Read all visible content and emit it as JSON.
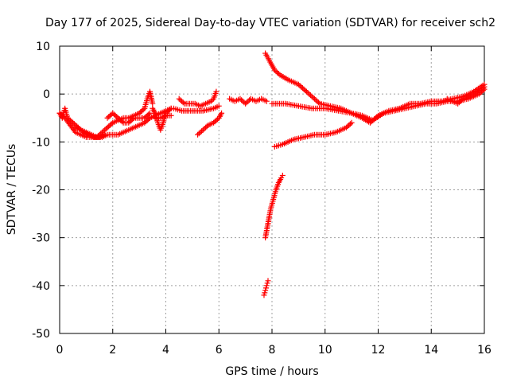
{
  "chart_data": {
    "type": "scatter",
    "title": "Day 177 of 2025, Sidereal Day-to-day VTEC variation (SDTVAR) for receiver sch2",
    "xlabel": "GPS time / hours",
    "ylabel": "SDTVAR / TECUs",
    "xlim": [
      0,
      16
    ],
    "ylim": [
      -50,
      10
    ],
    "x_ticks": [
      "0",
      "2",
      "4",
      "6",
      "8",
      "10",
      "12",
      "14",
      "16"
    ],
    "y_ticks": [
      "10",
      "0",
      "-10",
      "-20",
      "-30",
      "-40",
      "-50"
    ],
    "grid": true,
    "marker": "+",
    "color": "#ff0000",
    "series": [
      {
        "x": [
          0.0,
          0.1,
          0.2,
          0.3,
          0.5,
          0.7,
          0.9,
          1.1,
          1.3,
          1.5,
          1.7
        ],
        "y": [
          -4,
          -5,
          -3,
          -5,
          -6,
          -7,
          -8,
          -8.5,
          -9,
          -9,
          -8.5
        ]
      },
      {
        "x": [
          0.0,
          0.2,
          0.4,
          0.6,
          0.8,
          1.0,
          1.2,
          1.4,
          1.6,
          1.8,
          2.0,
          2.2,
          2.4,
          2.6,
          2.8,
          3.0,
          3.2,
          3.4,
          3.6,
          3.8,
          4.0,
          4.2
        ],
        "y": [
          -4,
          -5,
          -6.5,
          -8,
          -8.5,
          -9,
          -9,
          -9,
          -9,
          -8.5,
          -8.5,
          -8.5,
          -8,
          -7.5,
          -7,
          -6.5,
          -6,
          -5,
          -4.5,
          -4,
          -3.5,
          -3
        ]
      },
      {
        "x": [
          0.6,
          0.8,
          1.0,
          1.2,
          1.4,
          1.6,
          1.8,
          2.0,
          2.2,
          2.4,
          2.6,
          2.8,
          3.0,
          3.2,
          3.3,
          3.4,
          3.5
        ],
        "y": [
          -7,
          -7.5,
          -8,
          -8.5,
          -9,
          -8,
          -7,
          -6,
          -5.5,
          -5,
          -5,
          -4.5,
          -4,
          -3,
          -1,
          0.5,
          -2
        ]
      },
      {
        "x": [
          1.8,
          2.0,
          2.2,
          2.4,
          2.6,
          2.8,
          3.0,
          3.2,
          3.4
        ],
        "y": [
          -5,
          -4,
          -5,
          -6,
          -6,
          -5,
          -5,
          -5,
          -4
        ]
      },
      {
        "x": [
          3.5,
          3.6,
          3.7,
          3.8,
          3.9,
          4.0,
          4.2
        ],
        "y": [
          -3,
          -4,
          -6,
          -7.5,
          -6,
          -4,
          -3
        ]
      },
      {
        "x": [
          3.6,
          3.8,
          4.0,
          4.2
        ],
        "y": [
          -5,
          -5,
          -4.5,
          -4.5
        ]
      },
      {
        "x": [
          4.5,
          4.7,
          4.9,
          5.1,
          5.3,
          5.5,
          5.7,
          5.8,
          5.9
        ],
        "y": [
          -1,
          -2,
          -2,
          -2,
          -2.5,
          -2,
          -1.5,
          -1,
          0.5
        ]
      },
      {
        "x": [
          4.3,
          4.6,
          5.0,
          5.4,
          5.8,
          6.0
        ],
        "y": [
          -3,
          -3.5,
          -3.5,
          -3.5,
          -3,
          -2.5
        ]
      },
      {
        "x": [
          5.2,
          5.4,
          5.6,
          5.8,
          6.0,
          6.1
        ],
        "y": [
          -8.5,
          -7.5,
          -6.5,
          -6,
          -5,
          -4
        ]
      },
      {
        "x": [
          6.4,
          6.6,
          6.8,
          7.0,
          7.2,
          7.4,
          7.6,
          7.8
        ],
        "y": [
          -1,
          -1.5,
          -1,
          -2,
          -1,
          -1.5,
          -1,
          -1.5
        ]
      },
      {
        "x": [
          7.75,
          7.9,
          8.1,
          8.3,
          8.6,
          9.0,
          9.4,
          9.8,
          10.2,
          10.6,
          11.0,
          11.4,
          11.7,
          12.0,
          12.4,
          12.8,
          13.2,
          13.6,
          14.0,
          14.4,
          14.8,
          15.2,
          15.6,
          16.0
        ],
        "y": [
          8.5,
          7,
          5,
          4,
          3,
          2,
          0,
          -2,
          -2.5,
          -3,
          -4,
          -5,
          -6,
          -4.5,
          -3.5,
          -3,
          -2,
          -2,
          -1.5,
          -1.5,
          -1,
          -0.5,
          0.5,
          2
        ]
      },
      {
        "x": [
          8.0,
          8.5,
          9.0,
          9.5,
          10.0,
          10.5,
          11.0,
          11.4,
          11.8,
          12.2,
          12.6,
          13.0,
          13.4,
          13.8,
          14.2,
          14.6,
          15.0,
          15.4,
          15.8,
          16.0
        ],
        "y": [
          -2,
          -2,
          -2.5,
          -3,
          -3,
          -3.5,
          -4,
          -4.5,
          -5.5,
          -4,
          -3.5,
          -3,
          -2.5,
          -2,
          -2,
          -1.5,
          -1.5,
          -1,
          0,
          1
        ]
      },
      {
        "x": [
          8.1,
          8.4,
          8.8,
          9.2,
          9.6,
          10.0,
          10.4,
          10.8,
          11.0
        ],
        "y": [
          -11,
          -10.5,
          -9.5,
          -9,
          -8.5,
          -8.5,
          -8,
          -7,
          -6
        ]
      },
      {
        "x": [
          7.75,
          7.85,
          7.95,
          8.05,
          8.15,
          8.25,
          8.35,
          8.4
        ],
        "y": [
          -30,
          -27,
          -24,
          -22,
          -20,
          -18.5,
          -17.5,
          -17
        ]
      },
      {
        "x": [
          7.7,
          7.75,
          7.8,
          7.85
        ],
        "y": [
          -42,
          -41,
          -40,
          -39
        ]
      },
      {
        "x": [
          14.6,
          14.8,
          15.0,
          15.2,
          15.4,
          15.6,
          15.8,
          16.0
        ],
        "y": [
          -1,
          -1.5,
          -2,
          -1,
          -0.5,
          0,
          0.5,
          1.5
        ]
      }
    ]
  }
}
